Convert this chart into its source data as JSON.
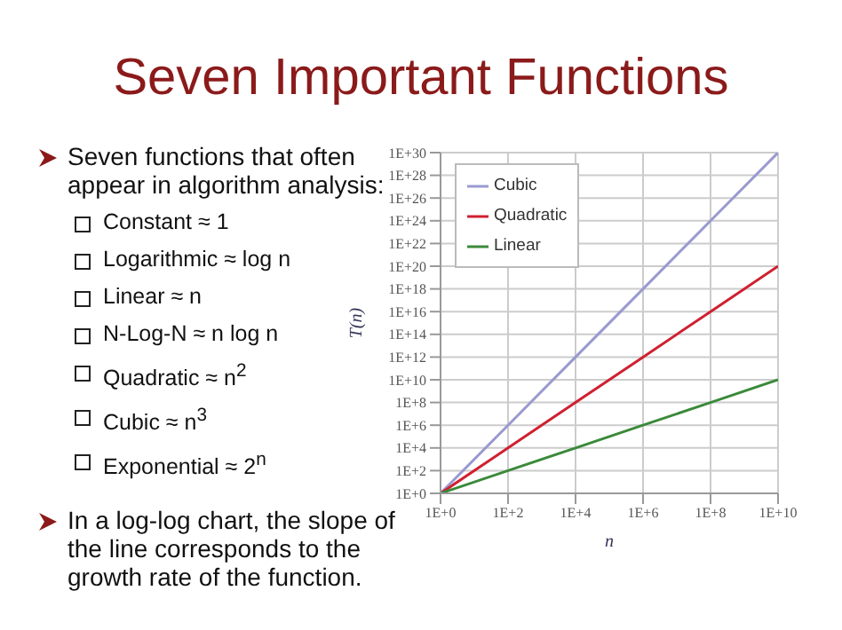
{
  "chart_data": {
    "type": "line",
    "title": "Seven Important Functions",
    "annotations": [
      "Seven functions that often appear in algorithm analysis:",
      "Constant ≈ 1",
      "Logarithmic ≈ log n",
      "Linear ≈ n",
      "N-Log-N ≈ n log n",
      "Quadratic ≈ n$^{2}$",
      "Cubic ≈ n$^{3}$",
      "Exponential ≈ 2$^{n}$",
      "In a log-log chart, the slope of the line corresponds to the growth rate of the function."
    ],
    "x": [
      1,
      100,
      10000,
      1000000,
      100000000,
      10000000000
    ],
    "series": [
      {
        "name": "Cubic",
        "color": "#9a9ad0",
        "values": [
          1,
          1000000.0,
          1000000000000.0,
          1e+18,
          1e+24,
          1e+30
        ]
      },
      {
        "name": "Quadratic",
        "color": "#d02030",
        "values": [
          1,
          10000.0,
          100000000.0,
          1000000000000.0,
          1e+16,
          1e+20
        ]
      },
      {
        "name": "Linear",
        "color": "#3a8a3a",
        "values": [
          1,
          100,
          10000,
          1000000,
          100000000,
          10000000000
        ]
      }
    ],
    "xlabel": "n",
    "ylabel": "T(n)",
    "log": "xy",
    "xlim": [
      1,
      10000000000
    ],
    "xticks": [
      {
        "value": 1,
        "label": "1E+0"
      },
      {
        "value": 100,
        "label": "1E+2"
      },
      {
        "value": 10000,
        "label": "1E+4"
      },
      {
        "value": 1000000,
        "label": "1E+6"
      },
      {
        "value": 100000000,
        "label": "1E+8"
      },
      {
        "value": 10000000000,
        "label": "1E+10"
      }
    ],
    "ylim": [
      1,
      1e+30
    ],
    "yticks": [
      {
        "value": 1,
        "label": "1E+0"
      },
      {
        "value": 100.0,
        "label": "1E+2"
      },
      {
        "value": 10000.0,
        "label": "1E+4"
      },
      {
        "value": 1000000.0,
        "label": "1E+6"
      },
      {
        "value": 100000000.0,
        "label": "1E+8"
      },
      {
        "value": 10000000000.0,
        "label": "1E+10"
      },
      {
        "value": 1000000000000.0,
        "label": "1E+12"
      },
      {
        "value": 100000000000000.0,
        "label": "1E+14"
      },
      {
        "value": 1e+16,
        "label": "1E+16"
      },
      {
        "value": 1e+18,
        "label": "1E+18"
      },
      {
        "value": 1e+20,
        "label": "1E+20"
      },
      {
        "value": 1e+22,
        "label": "1E+22"
      },
      {
        "value": 1e+24,
        "label": "1E+24"
      },
      {
        "value": 1e+26,
        "label": "1E+26"
      },
      {
        "value": 1e+28,
        "label": "1E+28"
      },
      {
        "value": 1e+30,
        "label": "1E+30"
      }
    ],
    "grid": true,
    "legend": "top left",
    "marker": "none",
    "line_style": "solid"
  }
}
